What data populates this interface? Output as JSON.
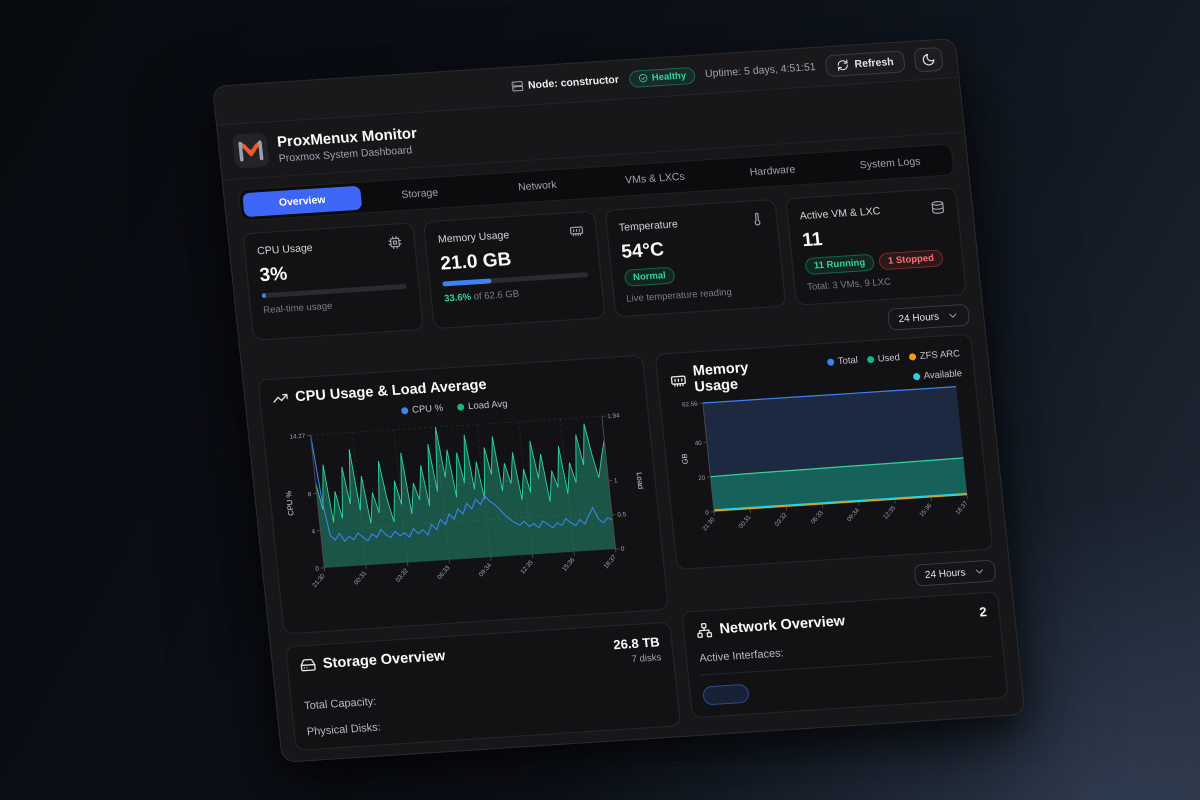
{
  "topbar": {
    "node_text": "Node: constructor",
    "health_label": "Healthy",
    "uptime": "Uptime: 5 days, 4:51:51",
    "refresh_label": "Refresh"
  },
  "header": {
    "title": "ProxMenux Monitor",
    "subtitle": "Proxmox System Dashboard"
  },
  "tabs": [
    {
      "label": "Overview",
      "active": true
    },
    {
      "label": "Storage",
      "active": false
    },
    {
      "label": "Network",
      "active": false
    },
    {
      "label": "VMs & LXCs",
      "active": false
    },
    {
      "label": "Hardware",
      "active": false
    },
    {
      "label": "System Logs",
      "active": false
    }
  ],
  "stats": {
    "cpu": {
      "label": "CPU Usage",
      "value": "3%",
      "percent": 3,
      "caption": "Real-time usage"
    },
    "memory": {
      "label": "Memory Usage",
      "value": "21.0 GB",
      "percent": 33.6,
      "caption_percent": "33.6%",
      "caption_rest": " of 62.6 GB"
    },
    "temperature": {
      "label": "Temperature",
      "value": "54°C",
      "badge": "Normal",
      "caption": "Live temperature reading"
    },
    "vm": {
      "label": "Active VM & LXC",
      "value": "11",
      "running_badge": "11 Running",
      "stopped_badge": "1 Stopped",
      "caption": "Total: 3 VMs, 9 LXC"
    }
  },
  "time_range": {
    "label": "24 Hours"
  },
  "time_range2": {
    "label": "24 Hours"
  },
  "chart_data": [
    {
      "type": "area",
      "title": "CPU Usage & Load Average",
      "x_labels": [
        "21:30",
        "00:31",
        "03:32",
        "06:33",
        "09:34",
        "12:35",
        "15:36",
        "18:37"
      ],
      "y_left": {
        "label": "CPU %",
        "ticks": [
          0,
          4,
          8,
          14.27
        ],
        "max": 14.27
      },
      "y_right": {
        "label": "Load",
        "ticks": [
          0,
          0.5,
          1,
          1.94
        ],
        "max": 1.94
      },
      "legend": [
        {
          "label": "CPU %",
          "color": "#3b82f6"
        },
        {
          "label": "Load Avg",
          "color": "#10b981"
        }
      ],
      "series": [
        {
          "name": "CPU %",
          "axis": "left",
          "color": "#3b82f6",
          "fill": "none",
          "values": [
            14.27,
            7.2,
            3.4,
            2.9,
            3.6,
            2.7,
            3.2,
            2.8,
            3.5,
            3,
            2.6,
            3.3,
            2.9,
            3.7,
            3.1,
            2.8,
            3.4,
            2.9,
            3.2,
            2.7,
            3.6,
            3,
            3.4,
            2.8,
            3.9,
            3.3,
            4.4,
            3.8,
            4.9,
            4.3,
            5.4,
            4.8,
            5.9,
            5.3,
            6.3,
            5.7,
            6.6,
            6,
            5.6,
            5,
            4.4,
            3.9,
            3.5,
            3.2,
            3.6,
            3,
            3.3,
            2.8,
            3.5,
            3.1,
            2.7,
            3.2,
            2.9,
            3.6,
            3.1,
            2.8,
            3.4,
            2.9,
            3.8,
            4.6,
            3.3,
            2.9,
            3.4,
            3.1
          ]
        },
        {
          "name": "Load Avg",
          "axis": "right",
          "color": "#2dd4a7",
          "fill": "rgba(45,212,167,0.35)",
          "values": [
            1.25,
            0.85,
            1.5,
            0.65,
            1.1,
            0.7,
            1.45,
            0.9,
            1.7,
            0.8,
            1.3,
            0.6,
            1.05,
            0.75,
            1.5,
            0.95,
            0.6,
            1.2,
            0.85,
            1.6,
            0.7,
            1.15,
            0.9,
            1.4,
            0.8,
            1.7,
            1,
            1.94,
            1.2,
            1.6,
            0.9,
            1.55,
            1.1,
            1.8,
            1,
            1.4,
            0.85,
            1.6,
            1.2,
            1.75,
            0.95,
            1.35,
            1.05,
            1.5,
            0.8,
            1.25,
            0.9,
            1.65,
            1.1,
            1.45,
            0.75,
            1.2,
            0.95,
            1.55,
            0.85,
            1.3,
            1,
            1.7,
            1.25,
            1.85,
            1.4,
            1.05,
            1.35,
            1.6
          ]
        }
      ]
    },
    {
      "type": "area",
      "title": "Memory Usage",
      "x_labels": [
        "21:30",
        "00:31",
        "03:32",
        "06:33",
        "09:34",
        "12:35",
        "15:36",
        "18:37"
      ],
      "y_left": {
        "label": "GB",
        "ticks": [
          0,
          20,
          40,
          62.56
        ],
        "max": 62.56
      },
      "legend": [
        {
          "label": "Total",
          "color": "#3b82f6"
        },
        {
          "label": "Used",
          "color": "#10b981"
        },
        {
          "label": "ZFS ARC",
          "color": "#f59e0b"
        },
        {
          "label": "Available",
          "color": "#22d3ee"
        }
      ],
      "series": [
        {
          "name": "Total",
          "color": "#3b82f6",
          "fill": "#1c2940",
          "values": [
            62.56,
            62.56,
            62.56,
            62.56,
            62.56,
            62.56,
            62.56,
            62.56,
            62.56
          ]
        },
        {
          "name": "Used",
          "color": "#34d399",
          "fill": "rgba(16,185,129,0.4)",
          "values": [
            20.2,
            20.5,
            20.7,
            20.8,
            21,
            21.1,
            21.2,
            21.4,
            21.6
          ]
        },
        {
          "name": "ZFS ARC",
          "color": "#f59e0b",
          "fill": "none",
          "values": [
            0.5,
            0.5,
            0.5,
            0.5,
            0.5,
            0.5,
            0.5,
            0.5,
            0.5
          ]
        },
        {
          "name": "Available",
          "color": "#22d3ee",
          "fill": "none",
          "values": [
            1.1,
            1.1,
            1.1,
            1.1,
            1.1,
            1.1,
            1.1,
            1.1,
            1.1
          ]
        }
      ]
    }
  ],
  "storage": {
    "title": "Storage Overview",
    "capacity": "26.8 TB",
    "disks": "7 disks",
    "row1": "Total Capacity:",
    "row2": "Physical Disks:"
  },
  "network": {
    "title": "Network Overview",
    "count": "2",
    "active_label": "Active Interfaces:",
    "badge": ""
  }
}
